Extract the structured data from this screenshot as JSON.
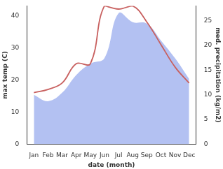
{
  "chart_data": {
    "type": "line",
    "x_label": "date (month)",
    "y_label": "max temp (C)",
    "y2_label": "med. precipitation (kg/m2)",
    "categories": [
      "Jan",
      "Feb",
      "Mar",
      "Apr",
      "May",
      "Jun",
      "Jul",
      "Aug",
      "Sep",
      "Oct",
      "Nov",
      "Dec"
    ],
    "series": [
      {
        "name": "med. precipitation (kg/m2)",
        "type": "area",
        "axis": "y2",
        "color": "#b3c1f2",
        "values": [
          10,
          8.7,
          10.4,
          14,
          16.3,
          17.4,
          26.5,
          24.7,
          24.4,
          21,
          17.4,
          13.2
        ]
      },
      {
        "name": "max temp (C)",
        "type": "line",
        "color": "#c8605f",
        "values": [
          16,
          17,
          19,
          25,
          25,
          43,
          42,
          43,
          38,
          31,
          24,
          19
        ]
      }
    ],
    "ylim": [
      0,
      43
    ],
    "yticks": [
      0,
      10,
      20,
      30,
      40
    ],
    "y2lim": [
      0,
      28
    ],
    "y2ticks": [
      0,
      5,
      10,
      15,
      20,
      25
    ],
    "grid": false
  }
}
